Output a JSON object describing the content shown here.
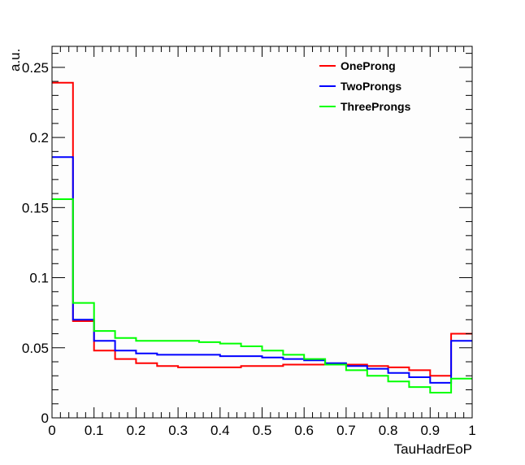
{
  "chart_data": {
    "type": "line",
    "title": "",
    "xlabel": "TauHadrEoP",
    "ylabel": "a.u.",
    "xlim": [
      0,
      1
    ],
    "ylim": [
      0,
      0.265
    ],
    "x_ticks": [
      0,
      0.1,
      0.2,
      0.3,
      0.4,
      0.5,
      0.6,
      0.7,
      0.8,
      0.9,
      1
    ],
    "x_tick_labels": [
      "0",
      "0.1",
      "0.2",
      "0.3",
      "0.4",
      "0.5",
      "0.6",
      "0.7",
      "0.8",
      "0.9",
      "1"
    ],
    "y_ticks": [
      0,
      0.05,
      0.1,
      0.15,
      0.2,
      0.25
    ],
    "y_tick_labels": [
      "0",
      "0.05",
      "0.1",
      "0.15",
      "0.2",
      "0.25"
    ],
    "bin_edges": [
      0,
      0.05,
      0.1,
      0.15,
      0.2,
      0.25,
      0.3,
      0.35,
      0.4,
      0.45,
      0.5,
      0.55,
      0.6,
      0.65,
      0.7,
      0.75,
      0.8,
      0.85,
      0.9,
      0.95,
      1.0
    ],
    "grid": false,
    "legend_position": "top-right",
    "series": [
      {
        "name": "OneProng",
        "color": "#ff0000",
        "values": [
          0.239,
          0.069,
          0.048,
          0.042,
          0.039,
          0.037,
          0.036,
          0.036,
          0.036,
          0.037,
          0.037,
          0.038,
          0.038,
          0.038,
          0.038,
          0.037,
          0.036,
          0.034,
          0.03,
          0.06
        ]
      },
      {
        "name": "TwoProngs",
        "color": "#0000ff",
        "values": [
          0.186,
          0.07,
          0.055,
          0.048,
          0.046,
          0.045,
          0.045,
          0.045,
          0.044,
          0.044,
          0.043,
          0.042,
          0.041,
          0.039,
          0.037,
          0.035,
          0.032,
          0.029,
          0.025,
          0.055
        ]
      },
      {
        "name": "ThreeProngs",
        "color": "#00ff00",
        "values": [
          0.156,
          0.082,
          0.062,
          0.057,
          0.055,
          0.055,
          0.055,
          0.054,
          0.053,
          0.051,
          0.048,
          0.045,
          0.042,
          0.038,
          0.034,
          0.03,
          0.026,
          0.022,
          0.018,
          0.028
        ]
      }
    ]
  }
}
